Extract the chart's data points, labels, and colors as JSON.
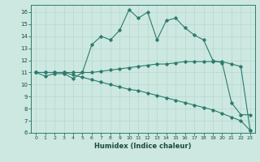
{
  "xlabel": "Humidex (Indice chaleur)",
  "background_color": "#cce8e0",
  "grid_color": "#b8d8d0",
  "line_color": "#2e7b6e",
  "xlim": [
    -0.5,
    23.5
  ],
  "ylim": [
    6,
    16.6
  ],
  "yticks": [
    6,
    7,
    8,
    9,
    10,
    11,
    12,
    13,
    14,
    15,
    16
  ],
  "xticks": [
    0,
    1,
    2,
    3,
    4,
    5,
    6,
    7,
    8,
    9,
    10,
    11,
    12,
    13,
    14,
    15,
    16,
    17,
    18,
    19,
    20,
    21,
    22,
    23
  ],
  "series1_x": [
    0,
    1,
    2,
    3,
    4,
    5,
    6,
    7,
    8,
    9,
    10,
    11,
    12,
    13,
    14,
    15,
    16,
    17,
    18,
    19,
    20,
    21,
    22,
    23
  ],
  "series1_y": [
    11.0,
    10.7,
    10.9,
    10.9,
    10.5,
    11.0,
    13.3,
    14.0,
    13.7,
    14.5,
    16.2,
    15.5,
    16.0,
    13.7,
    15.3,
    15.5,
    14.7,
    14.1,
    13.7,
    12.0,
    11.8,
    8.5,
    7.5,
    7.5
  ],
  "series2_x": [
    0,
    1,
    2,
    3,
    4,
    5,
    6,
    7,
    8,
    9,
    10,
    11,
    12,
    13,
    14,
    15,
    16,
    17,
    18,
    19,
    20,
    21,
    22,
    23
  ],
  "series2_y": [
    11.0,
    11.0,
    11.0,
    11.0,
    11.0,
    11.0,
    11.0,
    11.1,
    11.2,
    11.3,
    11.4,
    11.5,
    11.6,
    11.7,
    11.7,
    11.8,
    11.9,
    11.9,
    11.9,
    11.9,
    11.9,
    11.7,
    11.5,
    6.2
  ],
  "series3_x": [
    0,
    1,
    2,
    3,
    4,
    5,
    6,
    7,
    8,
    9,
    10,
    11,
    12,
    13,
    14,
    15,
    16,
    17,
    18,
    19,
    20,
    21,
    22,
    23
  ],
  "series3_y": [
    11.0,
    11.0,
    11.0,
    11.0,
    10.8,
    10.6,
    10.4,
    10.2,
    10.0,
    9.8,
    9.6,
    9.5,
    9.3,
    9.1,
    8.9,
    8.7,
    8.5,
    8.3,
    8.1,
    7.9,
    7.6,
    7.3,
    7.0,
    6.2
  ]
}
